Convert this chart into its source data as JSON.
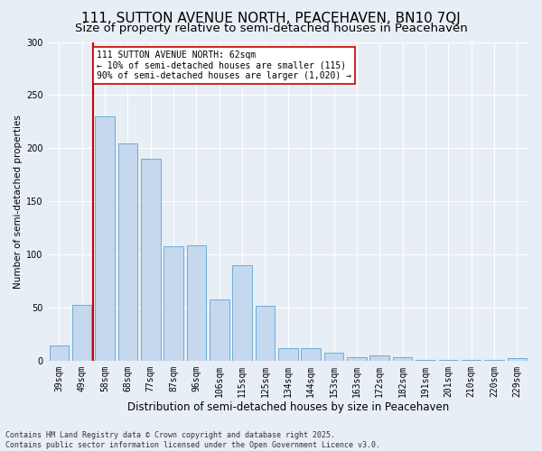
{
  "title": "111, SUTTON AVENUE NORTH, PEACEHAVEN, BN10 7QJ",
  "subtitle": "Size of property relative to semi-detached houses in Peacehaven",
  "xlabel": "Distribution of semi-detached houses by size in Peacehaven",
  "ylabel": "Number of semi-detached properties",
  "categories": [
    "39sqm",
    "49sqm",
    "58sqm",
    "68sqm",
    "77sqm",
    "87sqm",
    "96sqm",
    "106sqm",
    "115sqm",
    "125sqm",
    "134sqm",
    "144sqm",
    "153sqm",
    "163sqm",
    "172sqm",
    "182sqm",
    "191sqm",
    "201sqm",
    "210sqm",
    "220sqm",
    "229sqm"
  ],
  "values": [
    15,
    53,
    230,
    205,
    190,
    108,
    109,
    58,
    90,
    52,
    12,
    12,
    8,
    4,
    5,
    4,
    1,
    1,
    1,
    1,
    3
  ],
  "bar_color": "#c5d8ee",
  "bar_edge_color": "#6aaed6",
  "highlight_line_color": "#cc0000",
  "highlight_bar_index": 2,
  "annotation_text": "111 SUTTON AVENUE NORTH: 62sqm\n← 10% of semi-detached houses are smaller (115)\n90% of semi-detached houses are larger (1,020) →",
  "annotation_box_color": "#ffffff",
  "annotation_box_edge_color": "#cc0000",
  "ylim": [
    0,
    300
  ],
  "yticks": [
    0,
    50,
    100,
    150,
    200,
    250,
    300
  ],
  "background_color": "#e8eef5",
  "plot_bg_color": "#e8eef5",
  "footer_text": "Contains HM Land Registry data © Crown copyright and database right 2025.\nContains public sector information licensed under the Open Government Licence v3.0.",
  "title_fontsize": 11,
  "subtitle_fontsize": 9.5,
  "xlabel_fontsize": 8.5,
  "ylabel_fontsize": 7.5,
  "tick_fontsize": 7,
  "annotation_fontsize": 7,
  "footer_fontsize": 6
}
